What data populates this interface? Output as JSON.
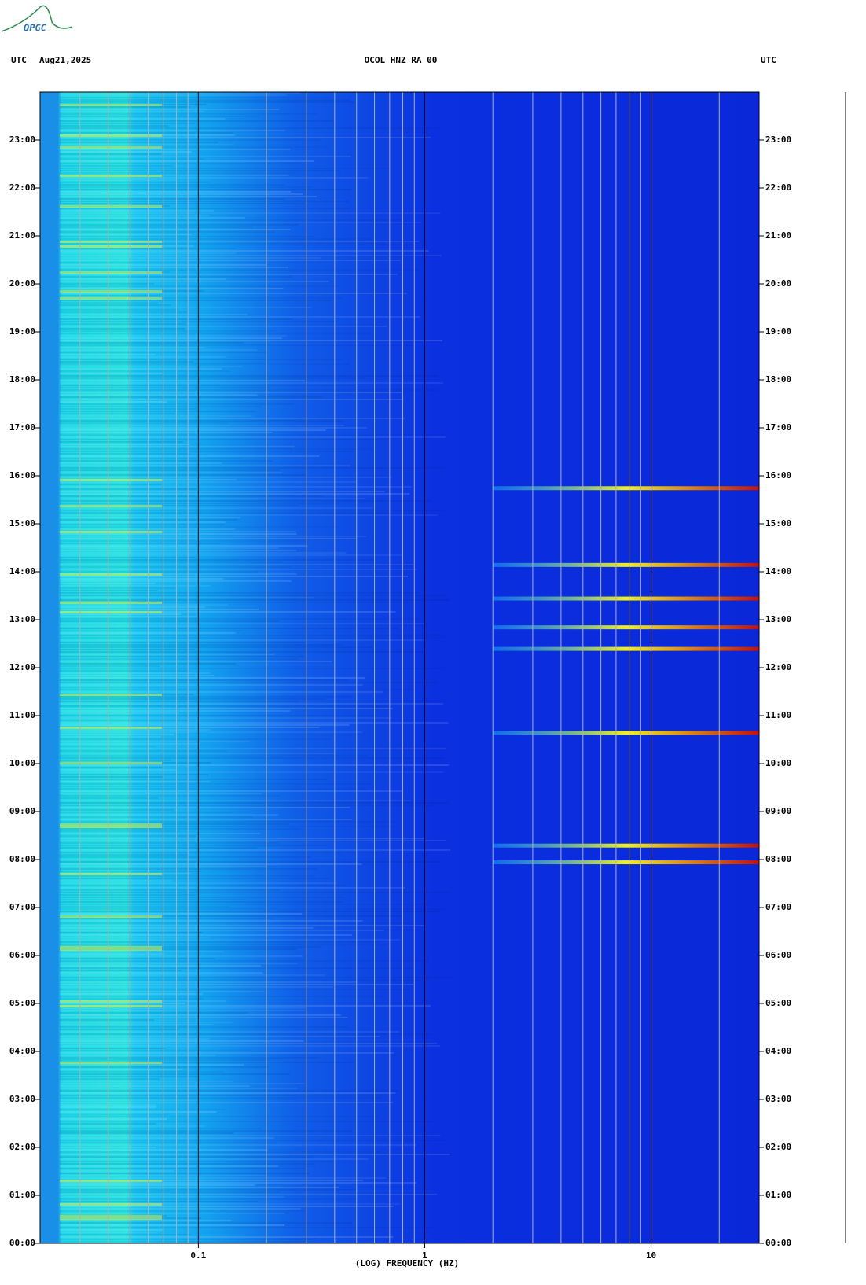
{
  "logo": "OPGC",
  "chart_data": {
    "type": "spectrogram",
    "time_zone": "UTC",
    "date": "Aug21,2025",
    "title": "OCOL HNZ RA 00",
    "x_label": "(LOG) FREQUENCY (HZ)",
    "xscale": "log",
    "xlim": [
      0.02,
      30
    ],
    "xticks": [
      0.1,
      1,
      10
    ],
    "xminor": [
      0.02,
      0.03,
      0.04,
      0.05,
      0.06,
      0.07,
      0.08,
      0.09,
      0.2,
      0.3,
      0.4,
      0.5,
      0.6,
      0.7,
      0.8,
      0.9,
      2,
      3,
      4,
      5,
      6,
      7,
      8,
      9,
      20,
      30
    ],
    "ylim": [
      0,
      24
    ],
    "yticks": [
      {
        "value": 0,
        "label": "00:00"
      },
      {
        "value": 1,
        "label": "01:00"
      },
      {
        "value": 2,
        "label": "02:00"
      },
      {
        "value": 3,
        "label": "03:00"
      },
      {
        "value": 4,
        "label": "04:00"
      },
      {
        "value": 5,
        "label": "05:00"
      },
      {
        "value": 6,
        "label": "06:00"
      },
      {
        "value": 7,
        "label": "07:00"
      },
      {
        "value": 8,
        "label": "08:00"
      },
      {
        "value": 9,
        "label": "09:00"
      },
      {
        "value": 10,
        "label": "10:00"
      },
      {
        "value": 11,
        "label": "11:00"
      },
      {
        "value": 12,
        "label": "12:00"
      },
      {
        "value": 13,
        "label": "13:00"
      },
      {
        "value": 14,
        "label": "14:00"
      },
      {
        "value": 15,
        "label": "15:00"
      },
      {
        "value": 16,
        "label": "16:00"
      },
      {
        "value": 17,
        "label": "17:00"
      },
      {
        "value": 18,
        "label": "18:00"
      },
      {
        "value": 19,
        "label": "19:00"
      },
      {
        "value": 20,
        "label": "20:00"
      },
      {
        "value": 21,
        "label": "21:00"
      },
      {
        "value": 22,
        "label": "22:00"
      },
      {
        "value": 23,
        "label": "23:00"
      }
    ],
    "events": [
      7.95,
      8.3,
      10.65,
      12.4,
      12.85,
      13.45,
      14.15,
      15.75
    ]
  }
}
